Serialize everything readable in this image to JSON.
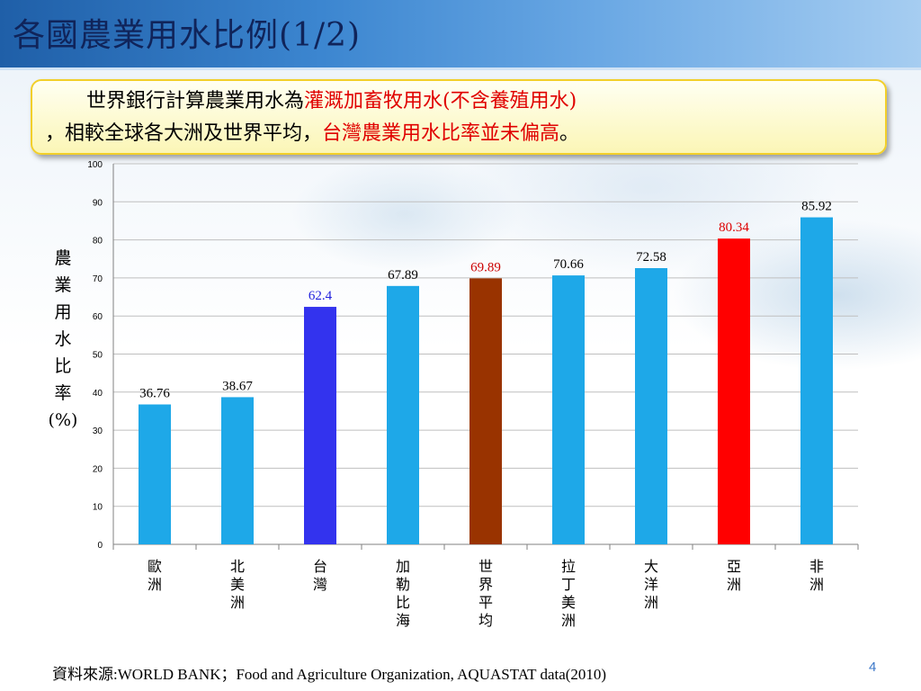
{
  "slide": {
    "title": "各國農業用水比例(1/2)",
    "page_number": "4",
    "source": "資料來源:WORLD BANK；Food and Agriculture Organization, AQUASTAT data(2010)"
  },
  "callout": {
    "line1_plain": "世界銀行計算農業用水為",
    "line1_highlight": "灌溉加畜牧用水(不含養殖用水)",
    "line2_plain_a": "，相較全球各大洲及世界平均，",
    "line2_highlight": "台灣農業用水比率並未偏高",
    "line2_plain_b": "。"
  },
  "chart_data": {
    "type": "bar",
    "title": "",
    "xlabel": "",
    "ylabel": "農業用水比率(%)",
    "ylim": [
      0,
      100
    ],
    "yticks": [
      0,
      10,
      20,
      30,
      40,
      50,
      60,
      70,
      80,
      90,
      100
    ],
    "grid": true,
    "categories": [
      "歐洲",
      "北美洲",
      "台灣",
      "加勒比海",
      "世界平均",
      "拉丁美洲",
      "大洋洲",
      "亞洲",
      "非洲"
    ],
    "values": [
      36.76,
      38.67,
      62.4,
      67.89,
      69.89,
      70.66,
      72.58,
      80.34,
      85.92
    ],
    "value_labels": [
      "36.76",
      "38.67",
      "62.4",
      "67.89",
      "69.89",
      "70.66",
      "72.58",
      "80.34",
      "85.92"
    ],
    "bar_colors": [
      "#1ea8e8",
      "#1ea8e8",
      "#3333ee",
      "#1ea8e8",
      "#993300",
      "#1ea8e8",
      "#1ea8e8",
      "#ff0000",
      "#1ea8e8"
    ],
    "label_colors": [
      "#000000",
      "#000000",
      "#2222dd",
      "#000000",
      "#cc0000",
      "#000000",
      "#000000",
      "#dd0000",
      "#000000"
    ]
  },
  "colors": {
    "title_text": "#10245a",
    "highlight_text": "#e00000",
    "gridline": "#bfbfbf",
    "axis": "#808080",
    "page_number": "#3c78c8"
  }
}
